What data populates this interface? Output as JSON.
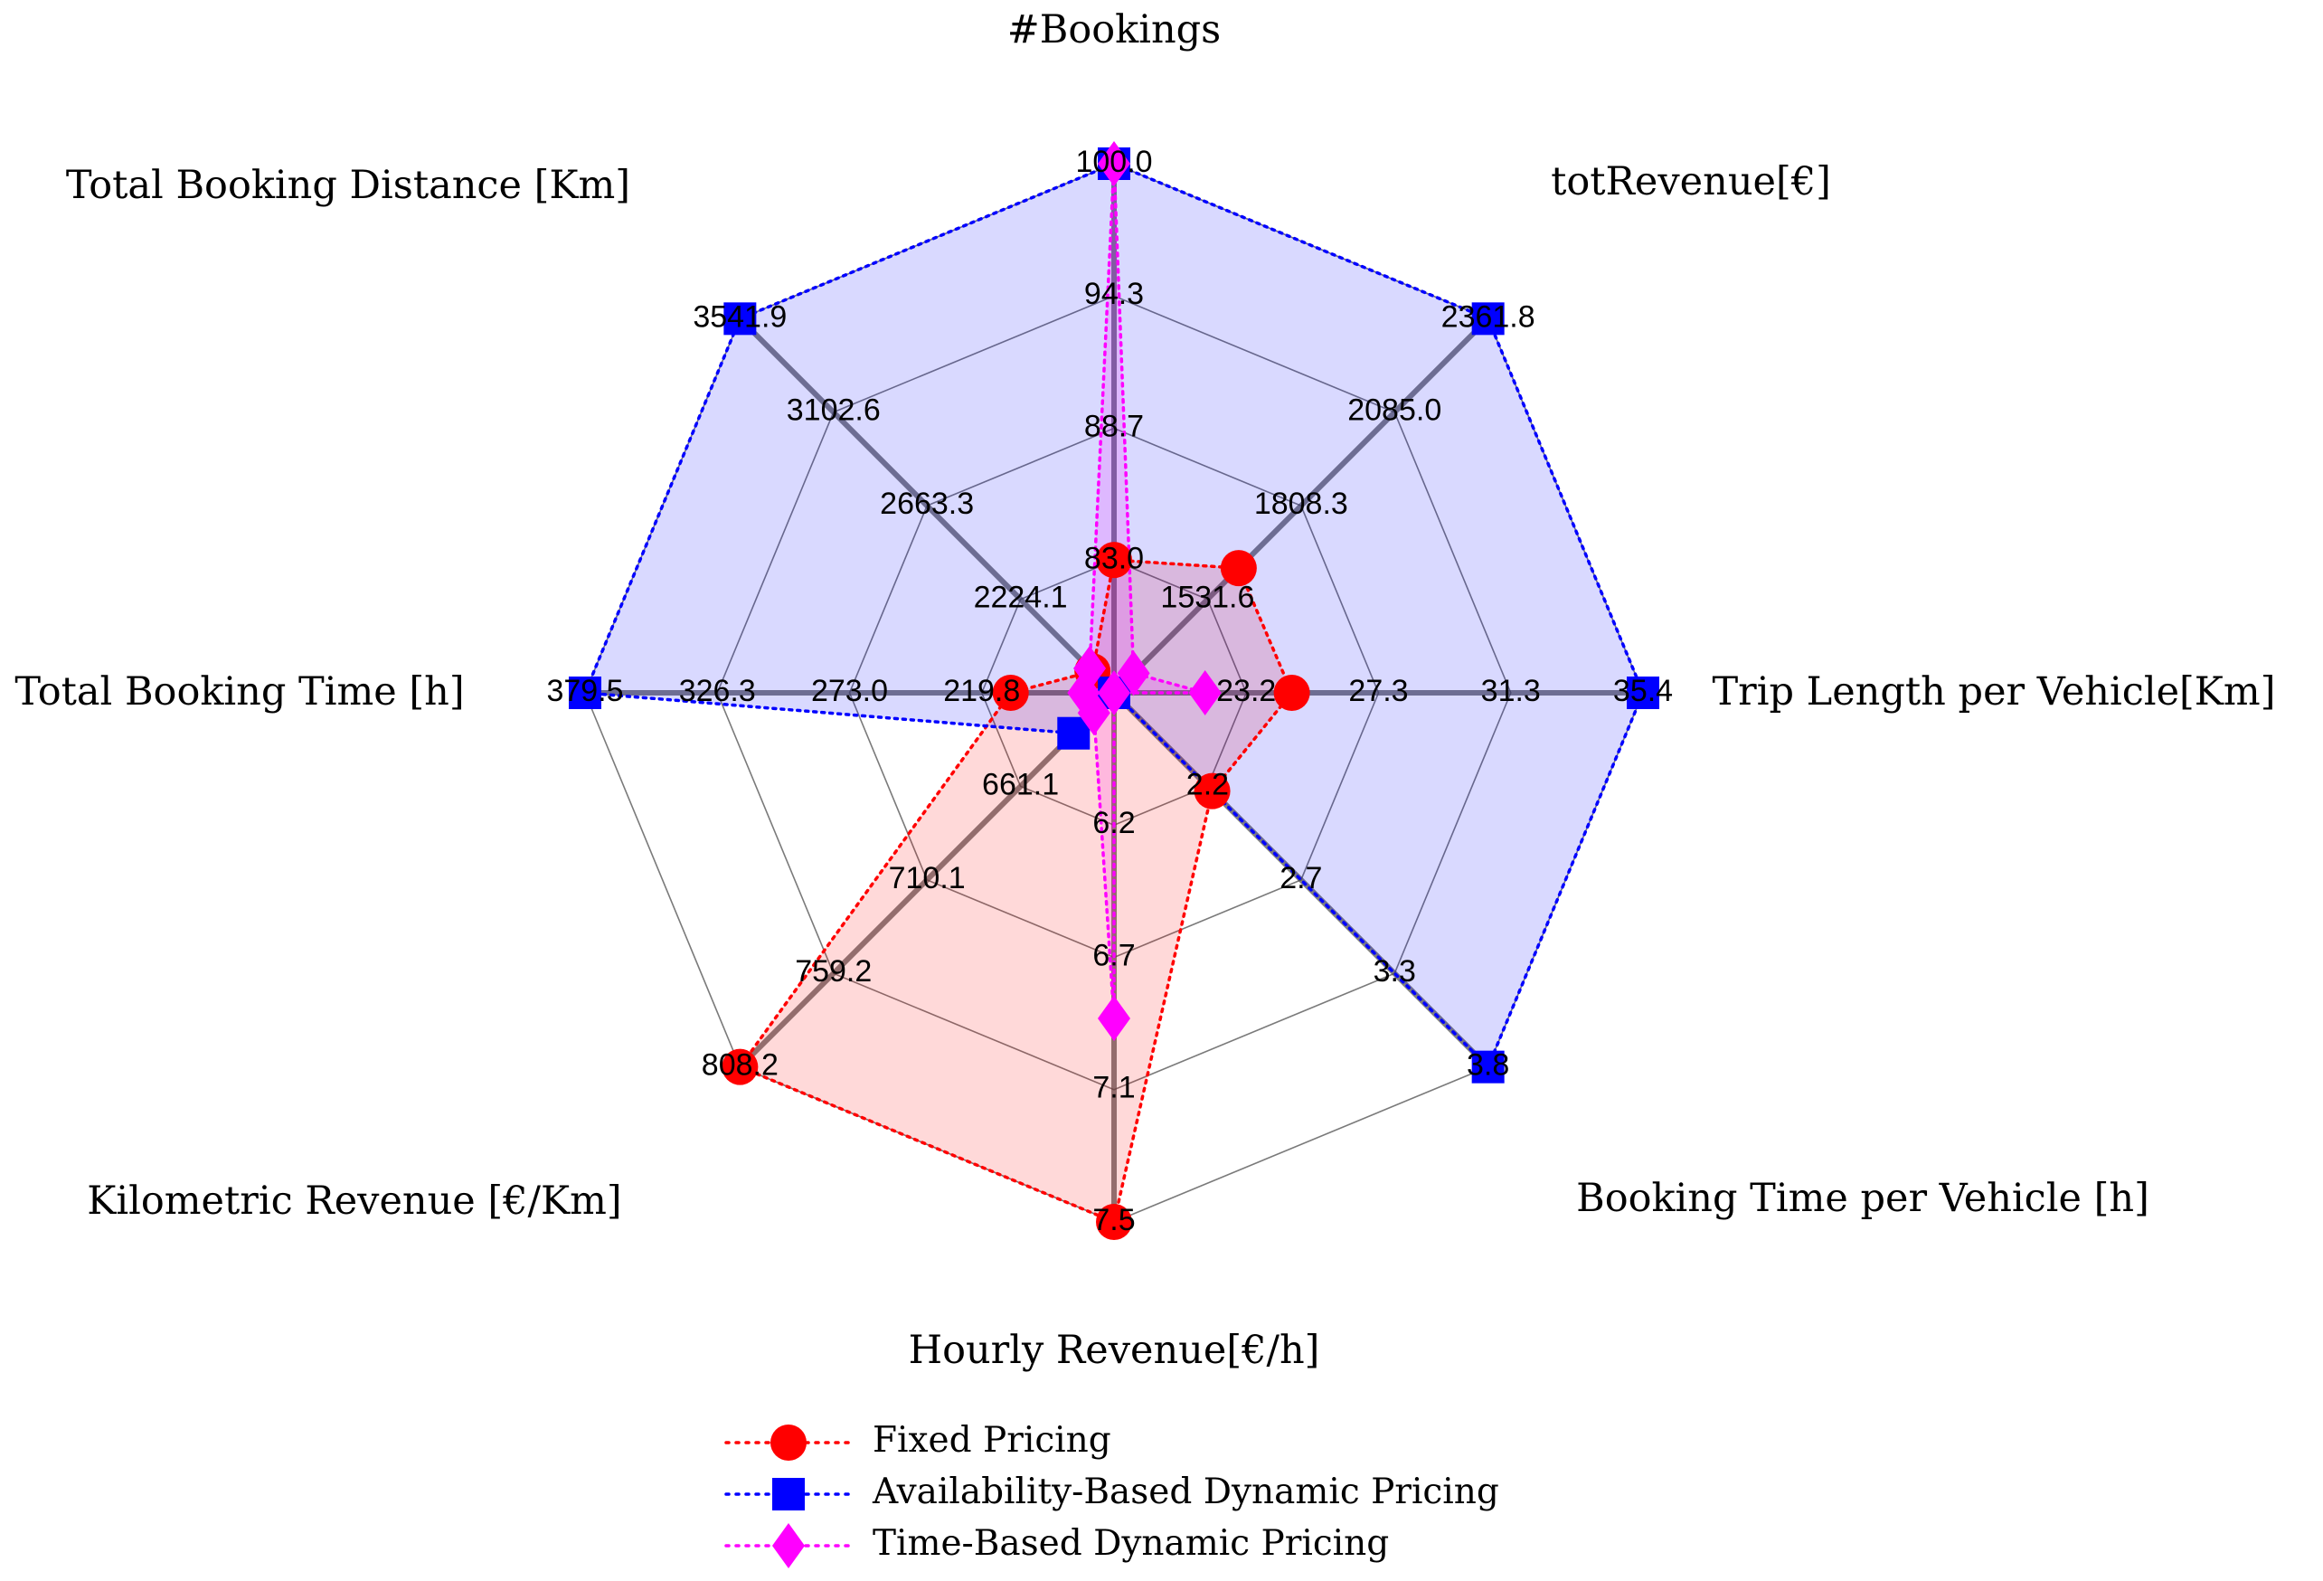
{
  "chart_data": {
    "type": "radar",
    "axes": [
      {
        "label": "#Bookings",
        "ticks": [
          "83.0",
          "88.7",
          "94.3",
          "100.0"
        ],
        "min": 77.3,
        "max": 100.0
      },
      {
        "label": "totRevenue[€]",
        "ticks": [
          "1808.3",
          "2085.0",
          "2361.8"
        ],
        "min": 1531.6,
        "max": 2361.8
      },
      {
        "label": "Trip Length per Vehicle[Km]",
        "ticks": [
          "27.3",
          "31.3",
          "35.4"
        ],
        "min": 23.2,
        "max": 35.4
      },
      {
        "label": "Booking Time per Vehicle [h]",
        "ticks": [
          "2.7",
          "3.3",
          "3.8"
        ],
        "min": 2.2,
        "max": 3.8
      },
      {
        "label": "Hourly Revenue[€/h]",
        "ticks": [
          "6.7",
          "7.1",
          "7.5"
        ],
        "min": 6.2,
        "max": 7.5
      },
      {
        "label": "Kilometric Revenue [€/Km]",
        "ticks": [
          "710.1",
          "759.2",
          "808.2"
        ],
        "min": 661.1,
        "max": 808.2
      },
      {
        "label": "Total Booking Time [h]",
        "ticks": [
          "273.0",
          "326.3",
          "379.5"
        ],
        "min": 219.8,
        "max": 379.5
      },
      {
        "label": "Total Booking Distance [Km]",
        "ticks": [
          "2663.3",
          "3102.6",
          "3541.9"
        ],
        "min": 2224.1,
        "max": 3541.9
      }
    ],
    "center_tick_labels": [
      "1531.6",
      "23.2",
      "2.2",
      "6.2",
      "661.1",
      "219.8",
      "2224.1"
    ],
    "series": [
      {
        "name": "Fixed Pricing",
        "color": "#ff0000",
        "fill": "rgba(255,0,0,0.15)",
        "marker": "circle",
        "values": [
          83.0,
          1808.3,
          27.3,
          2.62,
          7.5,
          808.2,
          251.0,
          2300.0
        ]
      },
      {
        "name": "Availability-Based Dynamic Pricing",
        "color": "#0000ff",
        "fill": "rgba(0,0,255,0.15)",
        "marker": "square",
        "values": [
          100.0,
          2361.8,
          35.4,
          3.8,
          6.2,
          677.0,
          379.5,
          3541.9
        ]
      },
      {
        "name": "Time-Based Dynamic Pricing",
        "color": "#ff00ff",
        "fill": "rgba(255,0,255,0.15)",
        "marker": "diamond",
        "values": [
          100.0,
          1575.0,
          25.3,
          2.2,
          7.0,
          669.0,
          229.0,
          2310.0
        ]
      }
    ],
    "legend_position": "bottom-center",
    "grid": true
  }
}
